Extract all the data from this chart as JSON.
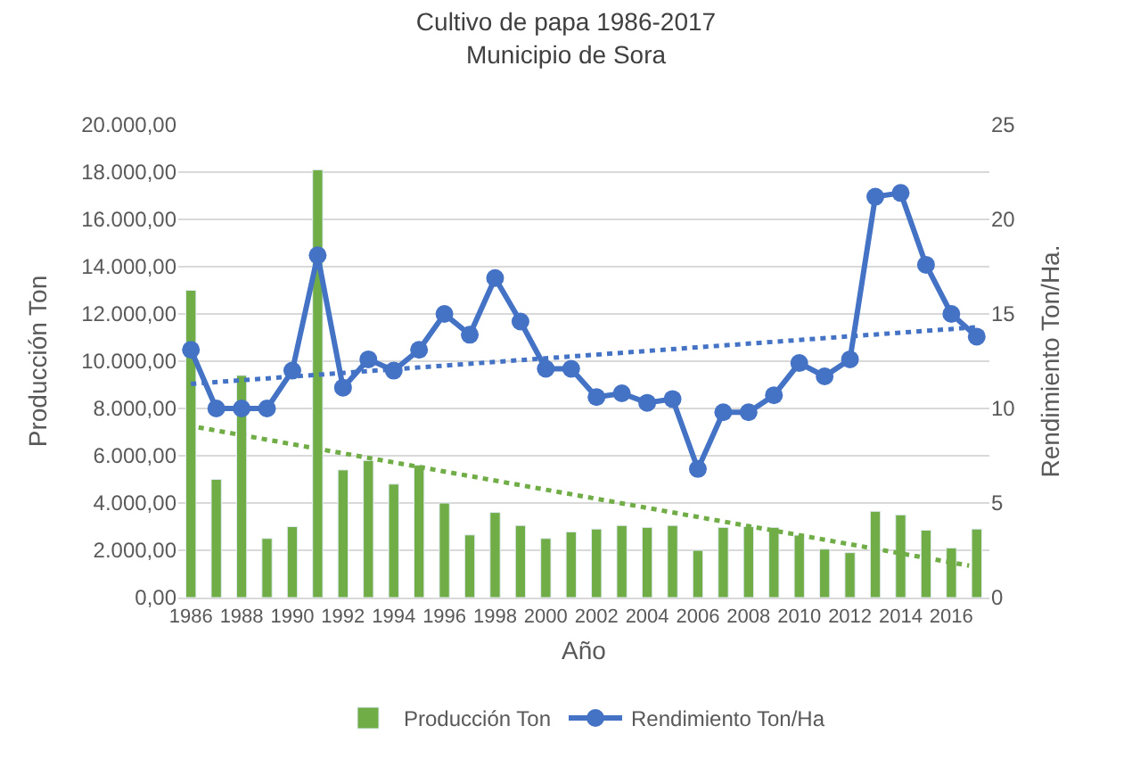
{
  "chart_data": {
    "type": "bar",
    "title": "Cultivo de papa 1986-2017",
    "subtitle": "Municipio de Sora",
    "xlabel": "Año",
    "ylabel": "Producción Ton",
    "y2label": "Rendimiento Ton/Ha.",
    "x": [
      1986,
      1987,
      1988,
      1989,
      1990,
      1991,
      1992,
      1993,
      1994,
      1995,
      1996,
      1997,
      1998,
      1999,
      2000,
      2001,
      2002,
      2003,
      2004,
      2005,
      2006,
      2007,
      2008,
      2009,
      2010,
      2011,
      2012,
      2013,
      2014,
      2015,
      2016,
      2017
    ],
    "xlim": [
      1985.5,
      2017.5
    ],
    "xticks": [
      1986,
      1988,
      1990,
      1992,
      1994,
      1996,
      1998,
      2000,
      2002,
      2004,
      2006,
      2008,
      2010,
      2012,
      2014,
      2016
    ],
    "ylim": [
      0,
      20000
    ],
    "yticks": [
      {
        "value": 0,
        "label": "0,00"
      },
      {
        "value": 2000,
        "label": "2.000,00"
      },
      {
        "value": 4000,
        "label": "4.000,00"
      },
      {
        "value": 6000,
        "label": "6.000,00"
      },
      {
        "value": 8000,
        "label": "8.000,00"
      },
      {
        "value": 10000,
        "label": "10.000,00"
      },
      {
        "value": 12000,
        "label": "12.000,00"
      },
      {
        "value": 14000,
        "label": "14.000,00"
      },
      {
        "value": 16000,
        "label": "16.000,00"
      },
      {
        "value": 18000,
        "label": "18.000,00"
      },
      {
        "value": 20000,
        "label": "20.000,00"
      }
    ],
    "y2lim": [
      0,
      25
    ],
    "y2ticks": [
      0,
      5,
      10,
      15,
      20,
      25
    ],
    "grid": "y",
    "legend": "bottom",
    "series": [
      {
        "name": "Producción Ton",
        "color": "#70ad47",
        "values": [
          13000,
          5000,
          9400,
          2500,
          3000,
          18100,
          5400,
          5800,
          4800,
          5600,
          4000,
          2650,
          3600,
          3050,
          2500,
          2780,
          2900,
          3050,
          2970,
          3050,
          2000,
          2970,
          3000,
          2970,
          2640,
          2050,
          1900,
          3650,
          3500,
          2850,
          2100,
          2900
        ]
      },
      {
        "type": "line",
        "name": "Rendimiento Ton/Ha",
        "color": "#4472c4",
        "axis": "y2",
        "marker": "circle",
        "line_style": "solid",
        "values": [
          13.1,
          10.0,
          10.0,
          10.0,
          12.0,
          18.1,
          11.1,
          12.6,
          12.0,
          13.1,
          15.0,
          13.9,
          16.9,
          14.6,
          12.1,
          12.1,
          10.6,
          10.8,
          10.3,
          10.5,
          6.8,
          9.8,
          9.8,
          10.7,
          12.4,
          11.7,
          12.6,
          21.2,
          21.4,
          17.6,
          15.0,
          13.8
        ]
      },
      {
        "type": "line",
        "color": "#70ad47",
        "marker": "none",
        "line_style": "dotted",
        "x": [
          1986.3,
          2016.7
        ],
        "values": [
          7200,
          1350
        ]
      },
      {
        "type": "line",
        "color": "#4472c4",
        "axis": "y2",
        "marker": "none",
        "line_style": "dotted",
        "x": [
          1986,
          2017
        ],
        "values": [
          11.3,
          14.3
        ]
      }
    ]
  }
}
